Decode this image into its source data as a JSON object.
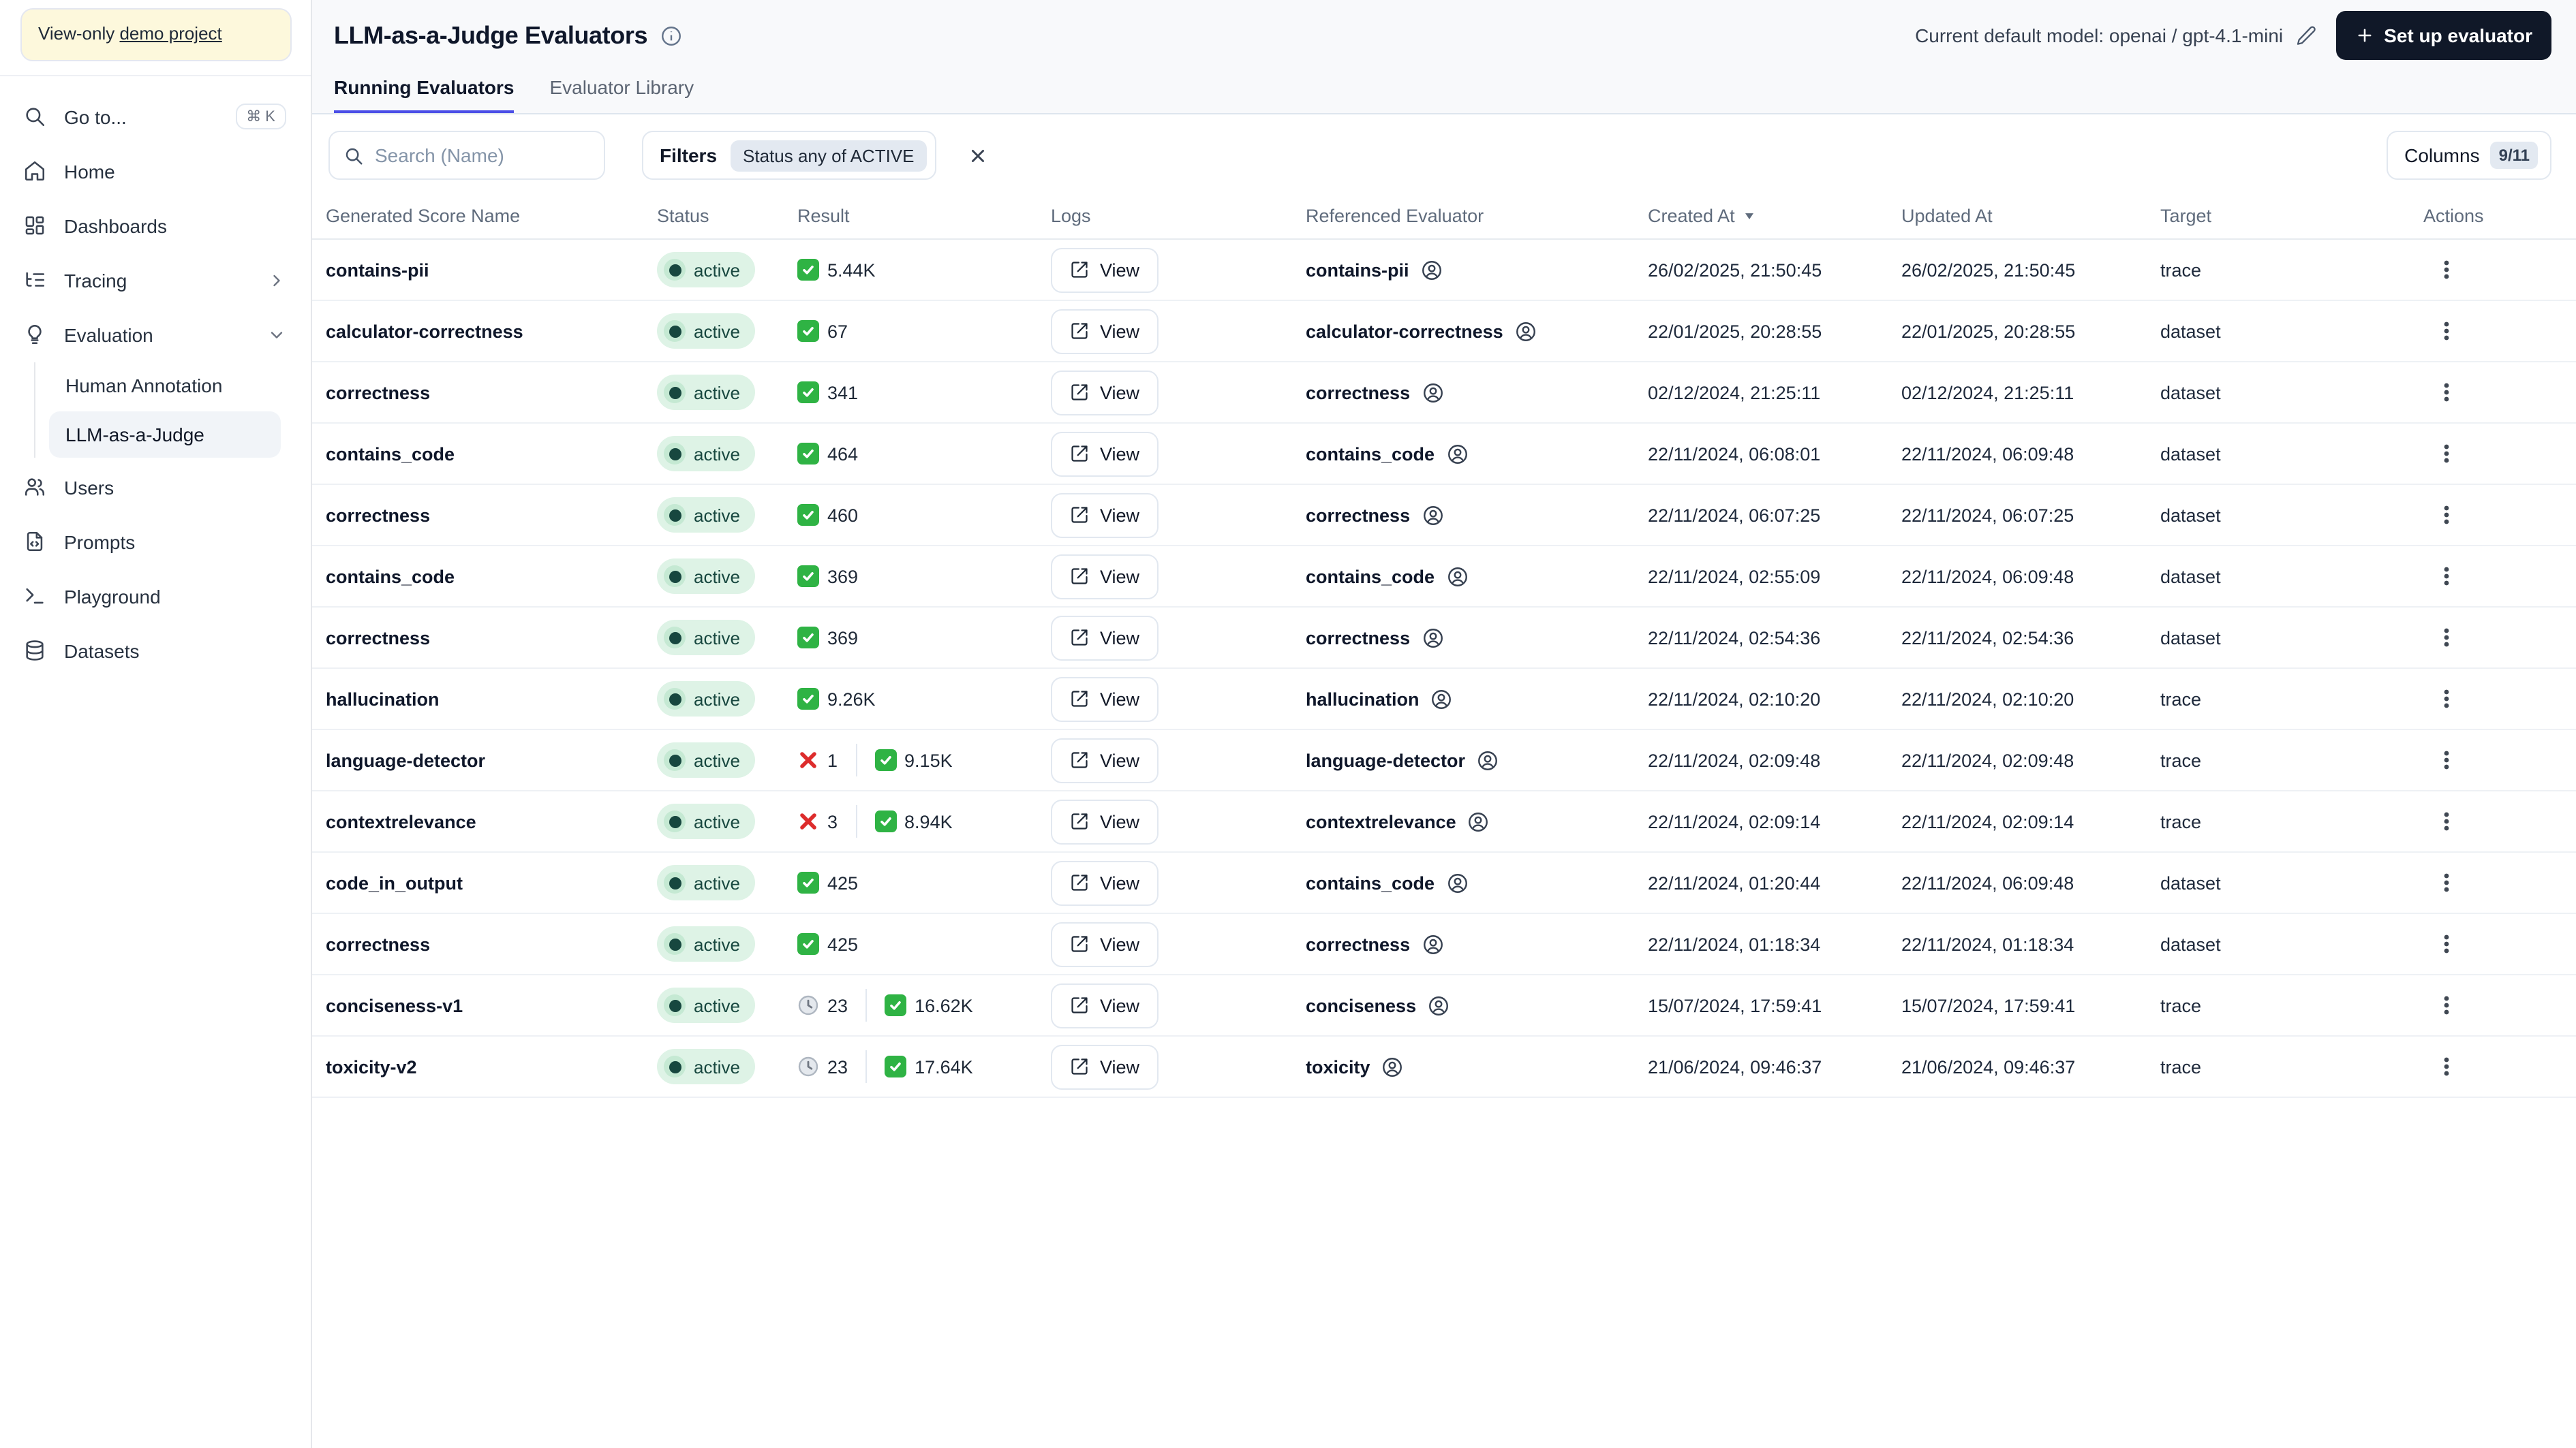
{
  "sidebar": {
    "project_banner": {
      "prefix": "View-only ",
      "link_text": "demo project"
    },
    "items": [
      {
        "label": "Go to...",
        "icon": "search-icon",
        "shortcut": "⌘ K"
      },
      {
        "label": "Home",
        "icon": "home-icon"
      },
      {
        "label": "Dashboards",
        "icon": "dashboard-grid-icon"
      },
      {
        "label": "Tracing",
        "icon": "list-tree-icon",
        "chevron": "right"
      },
      {
        "label": "Evaluation",
        "icon": "lightbulb-icon",
        "chevron": "down",
        "children": [
          "Human Annotation",
          "LLM-as-a-Judge"
        ],
        "active_child": "LLM-as-a-Judge"
      },
      {
        "label": "Users",
        "icon": "users-icon"
      },
      {
        "label": "Prompts",
        "icon": "file-code-icon"
      },
      {
        "label": "Playground",
        "icon": "terminal-icon"
      },
      {
        "label": "Datasets",
        "icon": "database-icon"
      }
    ]
  },
  "header": {
    "title": "LLM-as-a-Judge Evaluators",
    "model_label": "Current default model: openai / gpt-4.1-mini",
    "setup_button_label": "Set up evaluator",
    "tabs": [
      {
        "label": "Running Evaluators",
        "active": true
      },
      {
        "label": "Evaluator Library",
        "active": false
      }
    ]
  },
  "toolbar": {
    "search_placeholder": "Search (Name)",
    "filters_label": "Filters",
    "filter_chip": "Status any of ACTIVE",
    "columns_label": "Columns",
    "columns_count": "9/11"
  },
  "table": {
    "columns": [
      "Generated Score Name",
      "Status",
      "Result",
      "Logs",
      "Referenced Evaluator",
      "Created At",
      "Updated At",
      "Target",
      "Actions"
    ],
    "sorted_column": "Created At",
    "sort_direction": "desc",
    "view_label": "View",
    "rows": [
      {
        "name": "contains-pii",
        "status": "active",
        "result": {
          "pass": "5.44K"
        },
        "referenced": "contains-pii",
        "created": "26/02/2025, 21:50:45",
        "updated": "26/02/2025, 21:50:45",
        "target": "trace"
      },
      {
        "name": "calculator-correctness",
        "status": "active",
        "result": {
          "pass": "67"
        },
        "referenced": "calculator-correctness",
        "created": "22/01/2025, 20:28:55",
        "updated": "22/01/2025, 20:28:55",
        "target": "dataset"
      },
      {
        "name": "correctness",
        "status": "active",
        "result": {
          "pass": "341"
        },
        "referenced": "correctness",
        "created": "02/12/2024, 21:25:11",
        "updated": "02/12/2024, 21:25:11",
        "target": "dataset"
      },
      {
        "name": "contains_code",
        "status": "active",
        "result": {
          "pass": "464"
        },
        "referenced": "contains_code",
        "created": "22/11/2024, 06:08:01",
        "updated": "22/11/2024, 06:09:48",
        "target": "dataset"
      },
      {
        "name": "correctness",
        "status": "active",
        "result": {
          "pass": "460"
        },
        "referenced": "correctness",
        "created": "22/11/2024, 06:07:25",
        "updated": "22/11/2024, 06:07:25",
        "target": "dataset"
      },
      {
        "name": "contains_code",
        "status": "active",
        "result": {
          "pass": "369"
        },
        "referenced": "contains_code",
        "created": "22/11/2024, 02:55:09",
        "updated": "22/11/2024, 06:09:48",
        "target": "dataset"
      },
      {
        "name": "correctness",
        "status": "active",
        "result": {
          "pass": "369"
        },
        "referenced": "correctness",
        "created": "22/11/2024, 02:54:36",
        "updated": "22/11/2024, 02:54:36",
        "target": "dataset"
      },
      {
        "name": "hallucination",
        "status": "active",
        "result": {
          "pass": "9.26K"
        },
        "referenced": "hallucination",
        "created": "22/11/2024, 02:10:20",
        "updated": "22/11/2024, 02:10:20",
        "target": "trace"
      },
      {
        "name": "language-detector",
        "status": "active",
        "result": {
          "fail": "1",
          "pass": "9.15K"
        },
        "referenced": "language-detector",
        "created": "22/11/2024, 02:09:48",
        "updated": "22/11/2024, 02:09:48",
        "target": "trace"
      },
      {
        "name": "contextrelevance",
        "status": "active",
        "result": {
          "fail": "3",
          "pass": "8.94K"
        },
        "referenced": "contextrelevance",
        "created": "22/11/2024, 02:09:14",
        "updated": "22/11/2024, 02:09:14",
        "target": "trace"
      },
      {
        "name": "code_in_output",
        "status": "active",
        "result": {
          "pass": "425"
        },
        "referenced": "contains_code",
        "created": "22/11/2024, 01:20:44",
        "updated": "22/11/2024, 06:09:48",
        "target": "dataset"
      },
      {
        "name": "correctness",
        "status": "active",
        "result": {
          "pass": "425"
        },
        "referenced": "correctness",
        "created": "22/11/2024, 01:18:34",
        "updated": "22/11/2024, 01:18:34",
        "target": "dataset"
      },
      {
        "name": "conciseness-v1",
        "status": "active",
        "result": {
          "pending": "23",
          "pass": "16.62K"
        },
        "referenced": "conciseness",
        "created": "15/07/2024, 17:59:41",
        "updated": "15/07/2024, 17:59:41",
        "target": "trace"
      },
      {
        "name": "toxicity-v2",
        "status": "active",
        "result": {
          "pending": "23",
          "pass": "17.64K"
        },
        "referenced": "toxicity",
        "created": "21/06/2024, 09:46:37",
        "updated": "21/06/2024, 09:46:37",
        "target": "trace"
      }
    ]
  },
  "colors": {
    "accent_tab_underline": "#4b4ee7",
    "primary_button_bg": "#101828",
    "status_badge_bg": "#def3e6",
    "status_badge_text": "#17473f",
    "pass_icon_green": "#2fb344",
    "fail_icon_red": "#dd2c2c",
    "banner_bg": "#fdf8dc",
    "topband_bg": "#f8f9fb"
  }
}
